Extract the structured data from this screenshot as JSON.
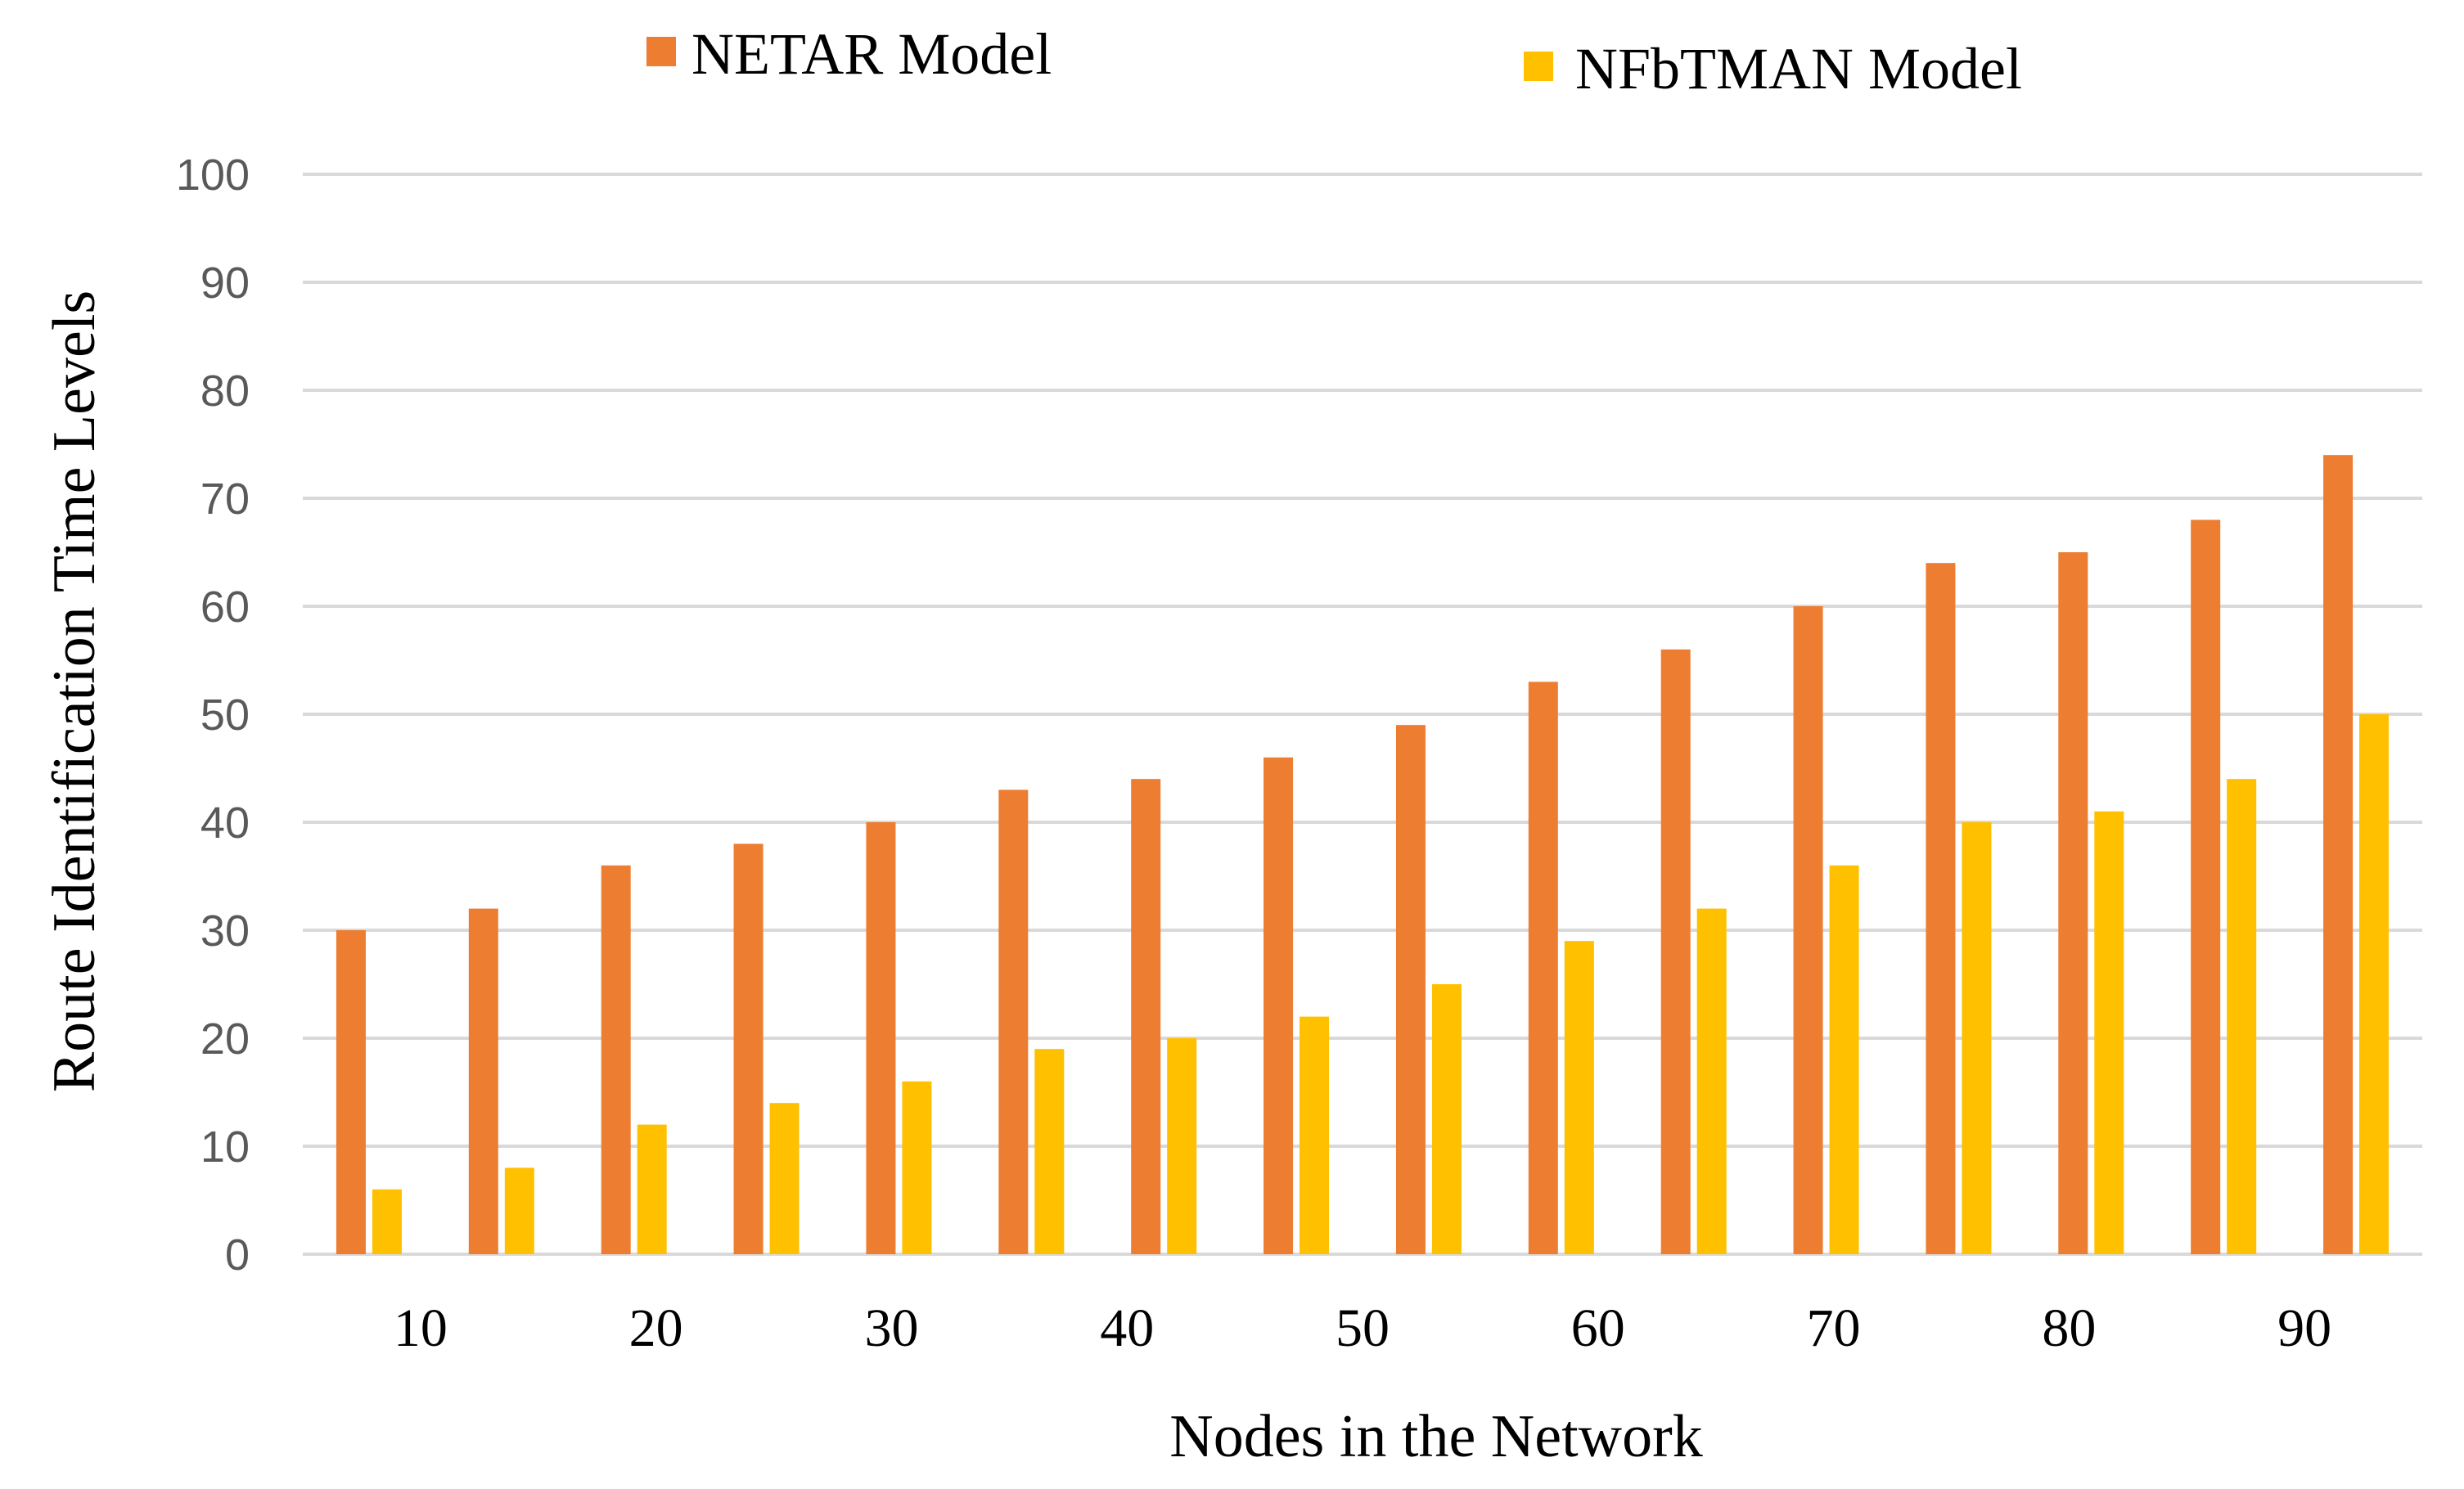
{
  "chart_data": {
    "type": "bar",
    "title": "",
    "xlabel": "Nodes in the Network",
    "ylabel": "Route Identification Time Levels",
    "ylim": [
      0,
      100
    ],
    "yticks": [
      "0",
      "10",
      "20",
      "30",
      "40",
      "50",
      "60",
      "70",
      "80",
      "90",
      "100"
    ],
    "xtick_labels": [
      "10",
      "20",
      "30",
      "40",
      "50",
      "60",
      "70",
      "80",
      "90"
    ],
    "grid": true,
    "legend_position": "top",
    "groups": 16,
    "series": [
      {
        "name": "NETAR Model",
        "color": "#ED7D31",
        "values": [
          30,
          32,
          36,
          38,
          40,
          43,
          44,
          46,
          49,
          53,
          56,
          60,
          64,
          65,
          68,
          74
        ]
      },
      {
        "name": "NFbTMAN Model",
        "color": "#FFC000",
        "values": [
          6,
          8,
          12,
          14,
          16,
          19,
          20,
          22,
          25,
          29,
          32,
          36,
          40,
          41,
          44,
          50
        ]
      }
    ]
  }
}
